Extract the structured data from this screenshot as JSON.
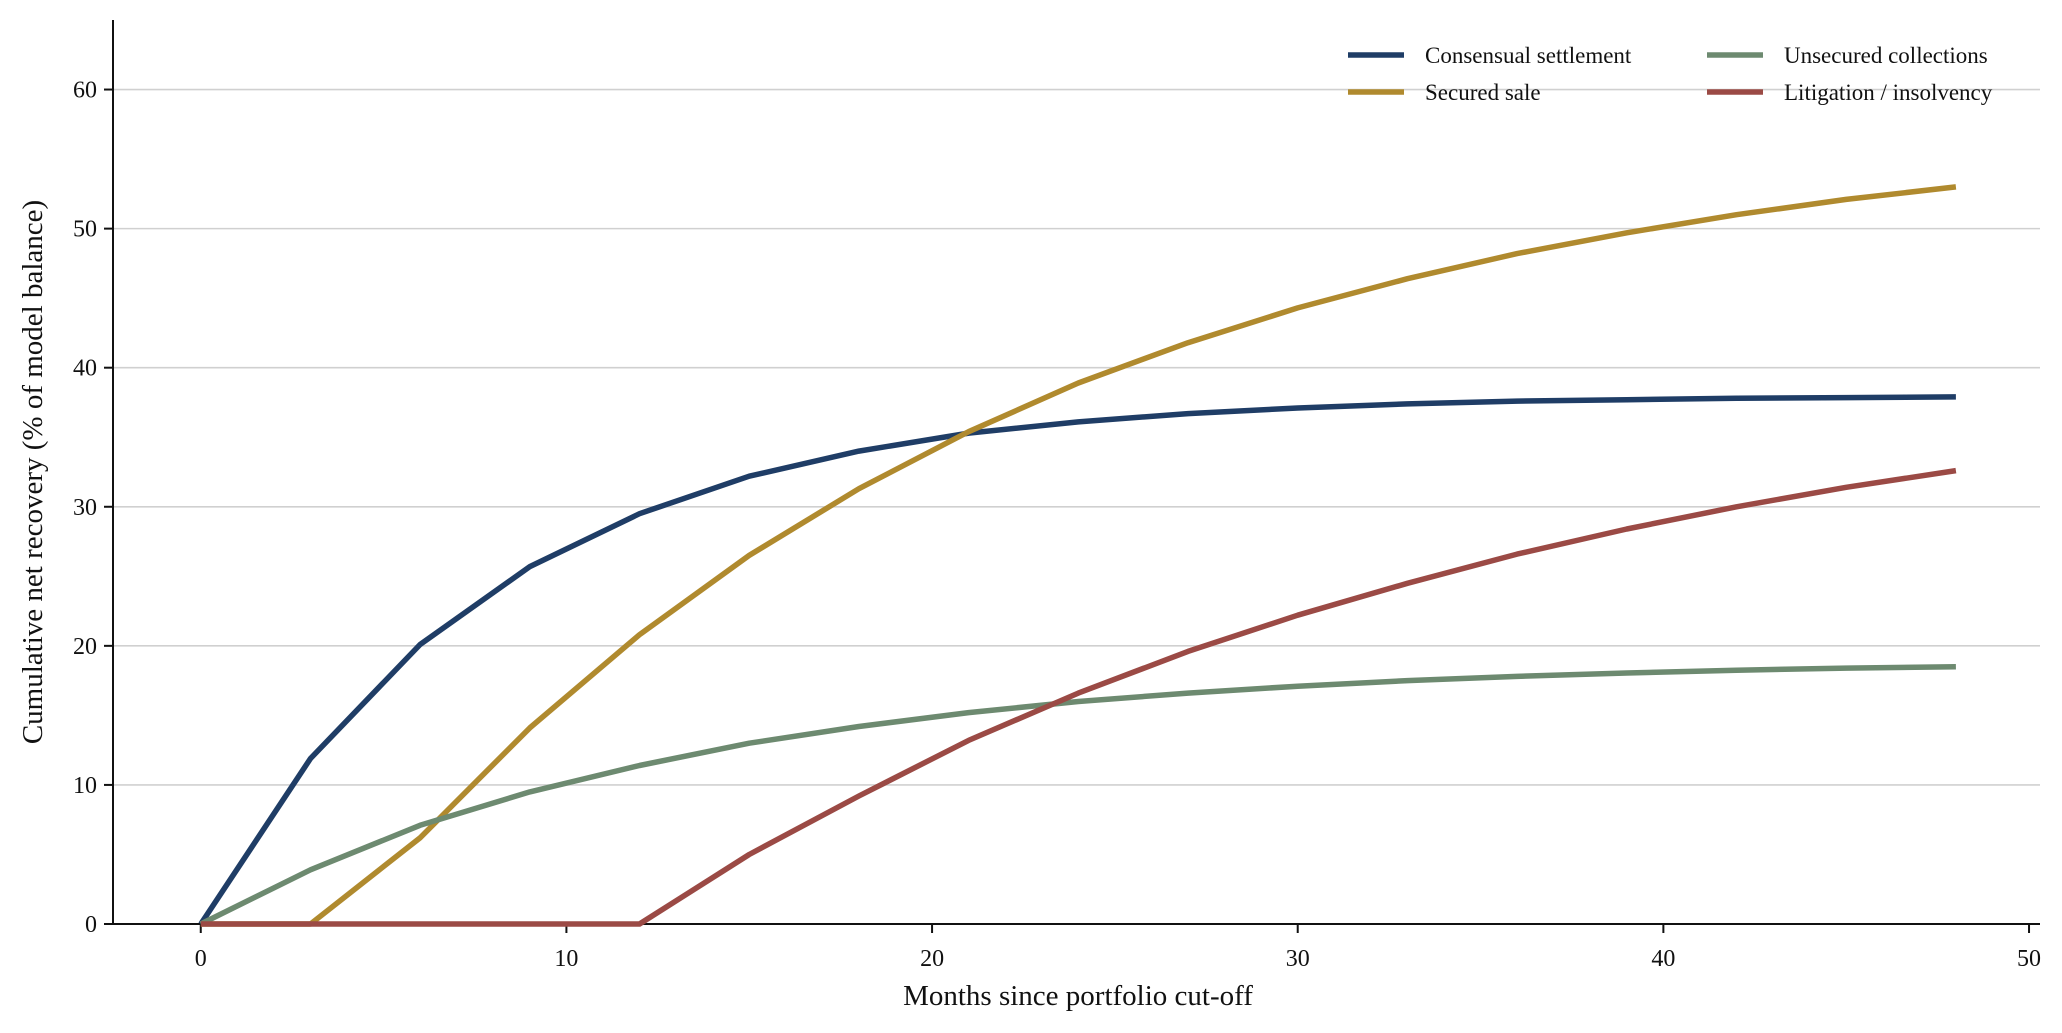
{
  "chart_data": {
    "type": "line",
    "xlabel": "Months since portfolio cut-off",
    "ylabel": "Cumulative net recovery (% of model balance)",
    "xlim": [
      -2.4,
      50.3
    ],
    "ylim": [
      0,
      65
    ],
    "xticks": [
      0,
      10,
      20,
      30,
      40,
      50
    ],
    "yticks": [
      0,
      10,
      20,
      30,
      40,
      50,
      60
    ],
    "grid": "horizontal",
    "legend_position": "top-right",
    "x": [
      0,
      3,
      6,
      9,
      12,
      15,
      18,
      21,
      24,
      27,
      30,
      33,
      36,
      39,
      42,
      45,
      48
    ],
    "series": [
      {
        "name": "Consensual settlement",
        "color": "#1f3d66",
        "values": [
          0,
          11.9,
          20.1,
          25.7,
          29.5,
          32.2,
          34.0,
          35.3,
          36.1,
          36.7,
          37.1,
          37.4,
          37.6,
          37.7,
          37.8,
          37.85,
          37.9
        ]
      },
      {
        "name": "Secured sale",
        "color": "#b08a2e",
        "values": [
          0,
          0,
          6.2,
          14.1,
          20.8,
          26.5,
          31.3,
          35.4,
          38.9,
          41.8,
          44.3,
          46.4,
          48.2,
          49.7,
          51.0,
          52.1,
          53.0
        ]
      },
      {
        "name": "Unsecured collections",
        "color": "#6d8a70",
        "values": [
          0,
          3.9,
          7.1,
          9.5,
          11.4,
          13.0,
          14.2,
          15.2,
          16.0,
          16.6,
          17.1,
          17.5,
          17.8,
          18.05,
          18.25,
          18.4,
          18.5
        ]
      },
      {
        "name": "Litigation / insolvency",
        "color": "#9b4a45",
        "values": [
          0,
          0,
          0,
          0,
          0,
          5.0,
          9.2,
          13.2,
          16.6,
          19.6,
          22.2,
          24.5,
          26.6,
          28.4,
          30.0,
          31.4,
          32.6
        ]
      }
    ]
  }
}
